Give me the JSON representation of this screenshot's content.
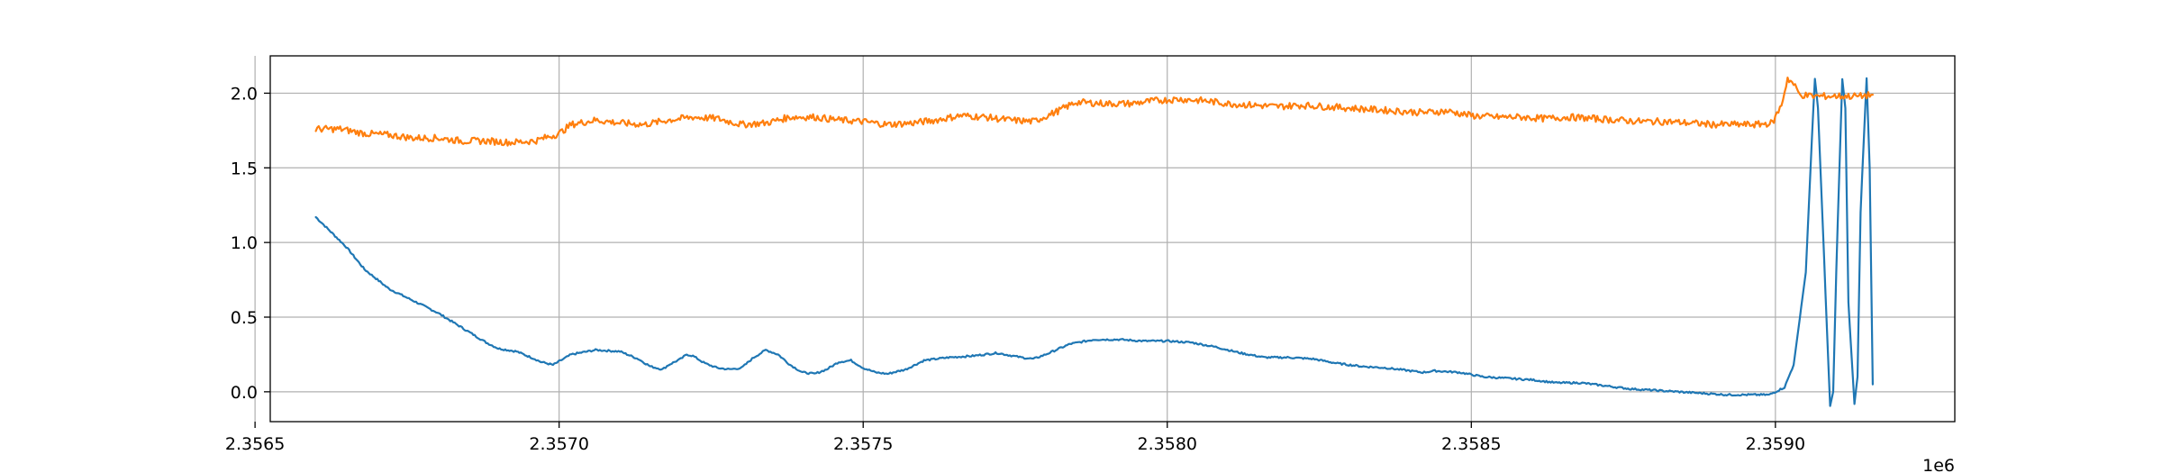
{
  "chart_data": {
    "type": "line",
    "title": "",
    "xlabel": "",
    "ylabel": "",
    "x_offset_label": "1e6",
    "xlim": [
      2.356525,
      2.359295
    ],
    "ylim": [
      -0.2,
      2.25
    ],
    "grid": true,
    "legend": "none",
    "x_ticks": [
      {
        "value": 2.3565,
        "label": "2.3565"
      },
      {
        "value": 2.357,
        "label": "2.3570"
      },
      {
        "value": 2.3575,
        "label": "2.3575"
      },
      {
        "value": 2.358,
        "label": "2.3580"
      },
      {
        "value": 2.3585,
        "label": "2.3585"
      },
      {
        "value": 2.359,
        "label": "2.3590"
      }
    ],
    "y_ticks": [
      {
        "value": 0.0,
        "label": "0.0"
      },
      {
        "value": 0.5,
        "label": "0.5"
      },
      {
        "value": 1.0,
        "label": "1.0"
      },
      {
        "value": 1.5,
        "label": "1.5"
      },
      {
        "value": 2.0,
        "label": "2.0"
      }
    ],
    "series": [
      {
        "color": "#1f77b4",
        "points": [
          [
            2.3566,
            1.17
          ],
          [
            2.35662,
            1.09
          ],
          [
            2.35665,
            0.97
          ],
          [
            2.35668,
            0.82
          ],
          [
            2.35672,
            0.69
          ],
          [
            2.35676,
            0.61
          ],
          [
            2.3568,
            0.53
          ],
          [
            2.35684,
            0.43
          ],
          [
            2.35688,
            0.33
          ],
          [
            2.3569,
            0.29
          ],
          [
            2.35693,
            0.27
          ],
          [
            2.35696,
            0.22
          ],
          [
            2.35697,
            0.2
          ],
          [
            2.35698,
            0.19
          ],
          [
            2.35699,
            0.18
          ],
          [
            2.35702,
            0.25
          ],
          [
            2.35706,
            0.28
          ],
          [
            2.3571,
            0.27
          ],
          [
            2.35713,
            0.22
          ],
          [
            2.35715,
            0.17
          ],
          [
            2.35717,
            0.15
          ],
          [
            2.35718,
            0.18
          ],
          [
            2.3572,
            0.22
          ],
          [
            2.35721,
            0.25
          ],
          [
            2.35722,
            0.24
          ],
          [
            2.35724,
            0.19
          ],
          [
            2.35726,
            0.16
          ],
          [
            2.35728,
            0.15
          ],
          [
            2.3573,
            0.16
          ],
          [
            2.35732,
            0.23
          ],
          [
            2.35734,
            0.28
          ],
          [
            2.35736,
            0.25
          ],
          [
            2.35738,
            0.18
          ],
          [
            2.3574,
            0.13
          ],
          [
            2.35742,
            0.12
          ],
          [
            2.35744,
            0.15
          ],
          [
            2.35746,
            0.2
          ],
          [
            2.35748,
            0.21
          ],
          [
            2.3575,
            0.16
          ],
          [
            2.35752,
            0.13
          ],
          [
            2.35754,
            0.12
          ],
          [
            2.35757,
            0.15
          ],
          [
            2.3576,
            0.21
          ],
          [
            2.35764,
            0.23
          ],
          [
            2.35768,
            0.24
          ],
          [
            2.35772,
            0.26
          ],
          [
            2.35776,
            0.23
          ],
          [
            2.35778,
            0.22
          ],
          [
            2.3578,
            0.25
          ],
          [
            2.35784,
            0.32
          ],
          [
            2.35788,
            0.35
          ],
          [
            2.35792,
            0.35
          ],
          [
            2.35796,
            0.34
          ],
          [
            2.358,
            0.34
          ],
          [
            2.35804,
            0.33
          ],
          [
            2.35808,
            0.3
          ],
          [
            2.35812,
            0.26
          ],
          [
            2.35816,
            0.23
          ],
          [
            2.3582,
            0.23
          ],
          [
            2.35824,
            0.22
          ],
          [
            2.35828,
            0.19
          ],
          [
            2.35832,
            0.17
          ],
          [
            2.35836,
            0.16
          ],
          [
            2.3584,
            0.14
          ],
          [
            2.35842,
            0.13
          ],
          [
            2.35844,
            0.14
          ],
          [
            2.35848,
            0.13
          ],
          [
            2.35852,
            0.1
          ],
          [
            2.35856,
            0.09
          ],
          [
            2.3586,
            0.08
          ],
          [
            2.35864,
            0.06
          ],
          [
            2.35868,
            0.06
          ],
          [
            2.35872,
            0.04
          ],
          [
            2.35876,
            0.02
          ],
          [
            2.3588,
            0.01
          ],
          [
            2.35884,
            0.0
          ],
          [
            2.35888,
            -0.01
          ],
          [
            2.35892,
            -0.02
          ],
          [
            2.35896,
            -0.02
          ],
          [
            2.35899,
            -0.02
          ],
          [
            2.359015,
            0.03
          ],
          [
            2.35903,
            0.18
          ],
          [
            2.35905,
            0.8
          ],
          [
            2.35906,
            1.7
          ],
          [
            2.359065,
            2.1
          ],
          [
            2.35907,
            1.9
          ],
          [
            2.35908,
            0.9
          ],
          [
            2.35909,
            -0.1
          ],
          [
            2.359095,
            0.0
          ],
          [
            2.3591,
            0.8
          ],
          [
            2.35911,
            2.1
          ],
          [
            2.359115,
            1.9
          ],
          [
            2.35912,
            0.6
          ],
          [
            2.35913,
            -0.08
          ],
          [
            2.359135,
            0.1
          ],
          [
            2.35914,
            1.2
          ],
          [
            2.35915,
            2.1
          ],
          [
            2.359155,
            1.5
          ],
          [
            2.35916,
            0.05
          ]
        ]
      },
      {
        "color": "#ff7f0e",
        "points": [
          [
            2.3566,
            1.76
          ],
          [
            2.35664,
            1.76
          ],
          [
            2.35668,
            1.73
          ],
          [
            2.35672,
            1.72
          ],
          [
            2.35676,
            1.7
          ],
          [
            2.3568,
            1.7
          ],
          [
            2.35684,
            1.68
          ],
          [
            2.35688,
            1.68
          ],
          [
            2.35692,
            1.67
          ],
          [
            2.35696,
            1.68
          ],
          [
            2.357,
            1.73
          ],
          [
            2.35702,
            1.79
          ],
          [
            2.35706,
            1.82
          ],
          [
            2.3571,
            1.8
          ],
          [
            2.35714,
            1.79
          ],
          [
            2.35718,
            1.82
          ],
          [
            2.35722,
            1.84
          ],
          [
            2.35726,
            1.83
          ],
          [
            2.3573,
            1.79
          ],
          [
            2.35734,
            1.8
          ],
          [
            2.35738,
            1.84
          ],
          [
            2.35742,
            1.84
          ],
          [
            2.35746,
            1.82
          ],
          [
            2.3575,
            1.81
          ],
          [
            2.35754,
            1.79
          ],
          [
            2.35758,
            1.8
          ],
          [
            2.35762,
            1.82
          ],
          [
            2.35766,
            1.85
          ],
          [
            2.3577,
            1.84
          ],
          [
            2.35774,
            1.82
          ],
          [
            2.35778,
            1.81
          ],
          [
            2.35782,
            1.88
          ],
          [
            2.35785,
            1.94
          ],
          [
            2.3579,
            1.93
          ],
          [
            2.35794,
            1.93
          ],
          [
            2.35798,
            1.95
          ],
          [
            2.35802,
            1.96
          ],
          [
            2.35806,
            1.95
          ],
          [
            2.3581,
            1.93
          ],
          [
            2.35814,
            1.92
          ],
          [
            2.35818,
            1.91
          ],
          [
            2.35822,
            1.92
          ],
          [
            2.35826,
            1.91
          ],
          [
            2.3583,
            1.9
          ],
          [
            2.35834,
            1.89
          ],
          [
            2.35838,
            1.88
          ],
          [
            2.35842,
            1.87
          ],
          [
            2.35846,
            1.88
          ],
          [
            2.3585,
            1.85
          ],
          [
            2.35854,
            1.84
          ],
          [
            2.35858,
            1.84
          ],
          [
            2.35862,
            1.83
          ],
          [
            2.35866,
            1.84
          ],
          [
            2.3587,
            1.83
          ],
          [
            2.35874,
            1.82
          ],
          [
            2.35878,
            1.81
          ],
          [
            2.35882,
            1.81
          ],
          [
            2.35886,
            1.8
          ],
          [
            2.3589,
            1.79
          ],
          [
            2.35894,
            1.79
          ],
          [
            2.35897,
            1.79
          ],
          [
            2.358995,
            1.8
          ],
          [
            2.35901,
            1.92
          ],
          [
            2.35902,
            2.1
          ],
          [
            2.35903,
            2.06
          ],
          [
            2.35904,
            1.99
          ],
          [
            2.35906,
            1.98
          ],
          [
            2.35908,
            1.98
          ],
          [
            2.3591,
            1.98
          ],
          [
            2.35912,
            1.98
          ],
          [
            2.35914,
            1.98
          ],
          [
            2.35916,
            1.99
          ]
        ]
      }
    ]
  }
}
